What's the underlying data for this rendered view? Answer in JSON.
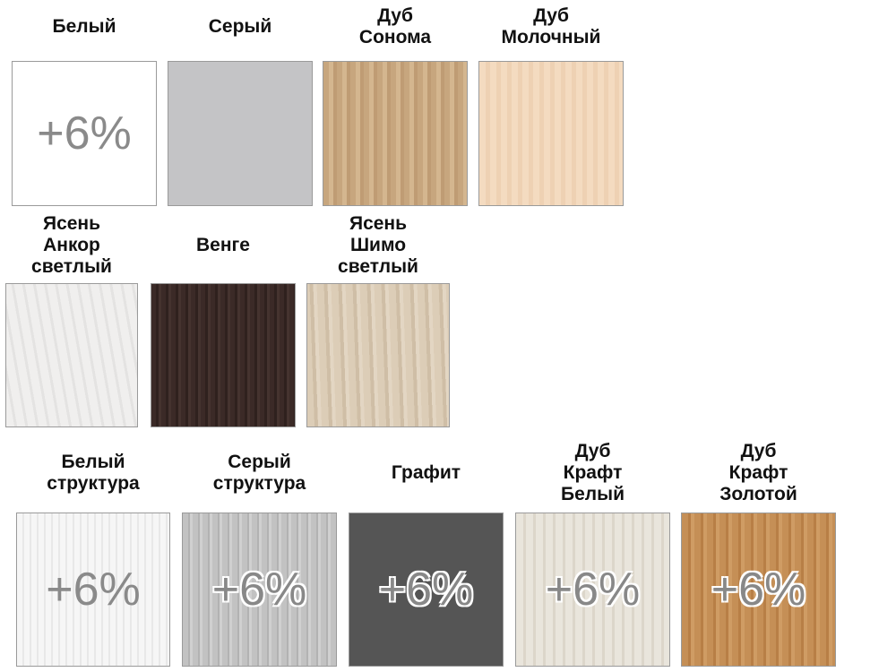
{
  "swatches": [
    {
      "label": [
        "Белый"
      ],
      "badge": "+6%"
    },
    {
      "label": [
        "Серый"
      ]
    },
    {
      "label": [
        "Дуб",
        "Сонома"
      ]
    },
    {
      "label": [
        "Дуб",
        "Молочный"
      ]
    },
    {
      "label": [
        "Ясень",
        "Анкор",
        "светлый"
      ]
    },
    {
      "label": [
        "Венге"
      ]
    },
    {
      "label": [
        "Ясень",
        "Шимо",
        "светлый"
      ]
    },
    {
      "label": [
        "Белый",
        "структура"
      ],
      "badge": "+6%"
    },
    {
      "label": [
        "Серый",
        "структура"
      ],
      "badge": "+6%"
    },
    {
      "label": [
        "Графит"
      ],
      "badge": "+6%"
    },
    {
      "label": [
        "Дуб",
        "Крафт",
        "Белый"
      ],
      "badge": "+6%"
    },
    {
      "label": [
        "Дуб",
        "Крафт",
        "Золотой"
      ],
      "badge": "+6%"
    }
  ]
}
